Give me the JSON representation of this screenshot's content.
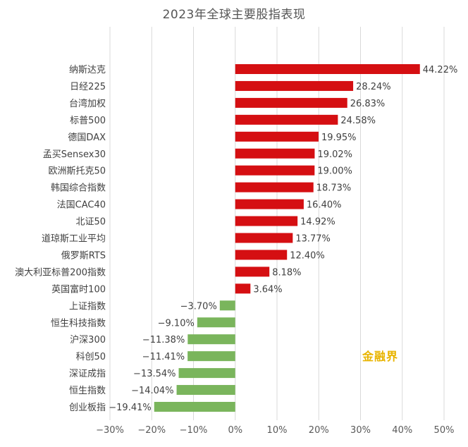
{
  "title": "2023年全球主要股指表现",
  "watermark": "金融界",
  "colors": {
    "positive": "#d50f12",
    "negative": "#7ab55c",
    "grid": "#d9d9d9",
    "axis_text": "#595959",
    "label_text": "#404040"
  },
  "chart_data": {
    "type": "bar",
    "orientation": "horizontal",
    "title": "2023年全球主要股指表现",
    "xlabel": "",
    "ylabel": "",
    "xlim": [
      -30,
      50
    ],
    "grid": true,
    "value_unit": "%",
    "categories": [
      "纳斯达克",
      "日经225",
      "台湾加权",
      "标普500",
      "德国DAX",
      "孟买Sensex30",
      "欧洲斯托克50",
      "韩国综合指数",
      "法国CAC40",
      "北证50",
      "道琼斯工业平均",
      "俄罗斯RTS",
      "澳大利亚标普200指数",
      "英国富时100",
      "上证指数",
      "恒生科技指数",
      "沪深300",
      "科创50",
      "深证成指",
      "恒生指数",
      "创业板指"
    ],
    "values": [
      44.22,
      28.24,
      26.83,
      24.58,
      19.95,
      19.02,
      19.0,
      18.73,
      16.4,
      14.92,
      13.77,
      12.4,
      8.18,
      3.64,
      -3.7,
      -9.1,
      -11.38,
      -11.41,
      -13.54,
      -14.04,
      -19.41
    ],
    "value_labels": [
      "44.22%",
      "28.24%",
      "26.83%",
      "24.58%",
      "19.95%",
      "19.02%",
      "19.00%",
      "18.73%",
      "16.40%",
      "14.92%",
      "13.77%",
      "12.40%",
      "8.18%",
      "3.64%",
      "−3.70%",
      "−9.10%",
      "−11.38%",
      "−11.41%",
      "−13.54%",
      "−14.04%",
      "−19.41%"
    ],
    "ticks": [
      -30,
      -20,
      -10,
      0,
      10,
      20,
      30,
      40,
      50
    ],
    "tick_labels": [
      "−30%",
      "−20%",
      "−10%",
      "0%",
      "10%",
      "20%",
      "30%",
      "40%",
      "50%"
    ]
  }
}
